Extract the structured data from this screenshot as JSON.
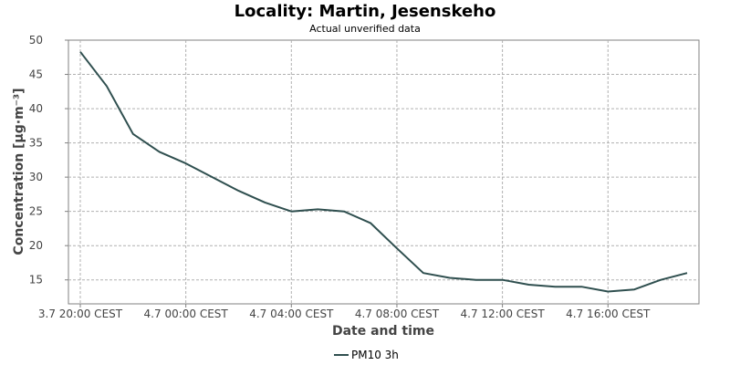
{
  "chart_data": {
    "type": "line",
    "title": "Locality: Martin, Jesenskeho",
    "subtitle": "Actual unverified data",
    "xlabel": "Date and time",
    "ylabel": "Concentration [µg·m⁻³]",
    "ylim": [
      11.5,
      50
    ],
    "x_ticks": [
      "3.7 20:00 CEST",
      "4.7 00:00 CEST",
      "4.7 04:00 CEST",
      "4.7 08:00 CEST",
      "4.7 12:00 CEST",
      "4.7 16:00 CEST"
    ],
    "y_ticks": [
      15,
      20,
      25,
      30,
      35,
      40,
      45,
      50
    ],
    "grid": true,
    "legend_position": "bottom",
    "series": [
      {
        "name": "PM10 3h",
        "color": "#2f4f4f",
        "x": [
          "3.7 20:00",
          "3.7 21:00",
          "3.7 22:00",
          "3.7 23:00",
          "4.7 00:00",
          "4.7 01:00",
          "4.7 02:00",
          "4.7 03:00",
          "4.7 04:00",
          "4.7 05:00",
          "4.7 06:00",
          "4.7 07:00",
          "4.7 08:00",
          "4.7 09:00",
          "4.7 10:00",
          "4.7 11:00",
          "4.7 12:00",
          "4.7 13:00",
          "4.7 14:00",
          "4.7 15:00",
          "4.7 16:00",
          "4.7 17:00",
          "4.7 18:00",
          "4.7 19:00"
        ],
        "values": [
          48.3,
          43.3,
          36.3,
          33.7,
          32.0,
          30.0,
          28.0,
          26.3,
          25.0,
          25.3,
          25.0,
          23.3,
          19.6,
          16.0,
          15.3,
          15.0,
          15.0,
          14.3,
          14.0,
          14.0,
          13.3,
          13.6,
          15.0,
          16.0
        ]
      }
    ]
  }
}
